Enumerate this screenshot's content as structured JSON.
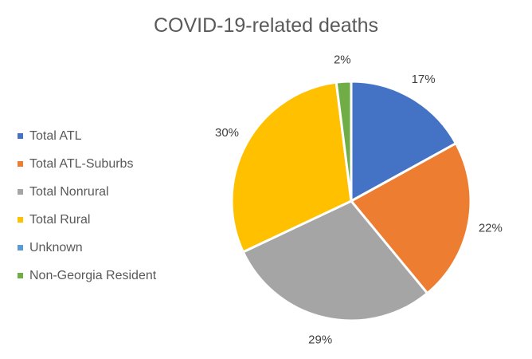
{
  "chart_data": {
    "type": "pie",
    "title": "COVID-19-related deaths",
    "categories": [
      "Total ATL",
      "Total ATL-Suburbs",
      "Total Nonrural",
      "Total Rural",
      "Unknown",
      "Non-Georgia Resident"
    ],
    "values": [
      17,
      22,
      29,
      30,
      0,
      2
    ],
    "labels": [
      "17%",
      "22%",
      "29%",
      "30%",
      "",
      "2%"
    ],
    "colors": [
      "#4472C4",
      "#ED7D31",
      "#A5A5A5",
      "#FFC000",
      "#5B9BD5",
      "#70AD47"
    ],
    "legend_position": "left"
  }
}
